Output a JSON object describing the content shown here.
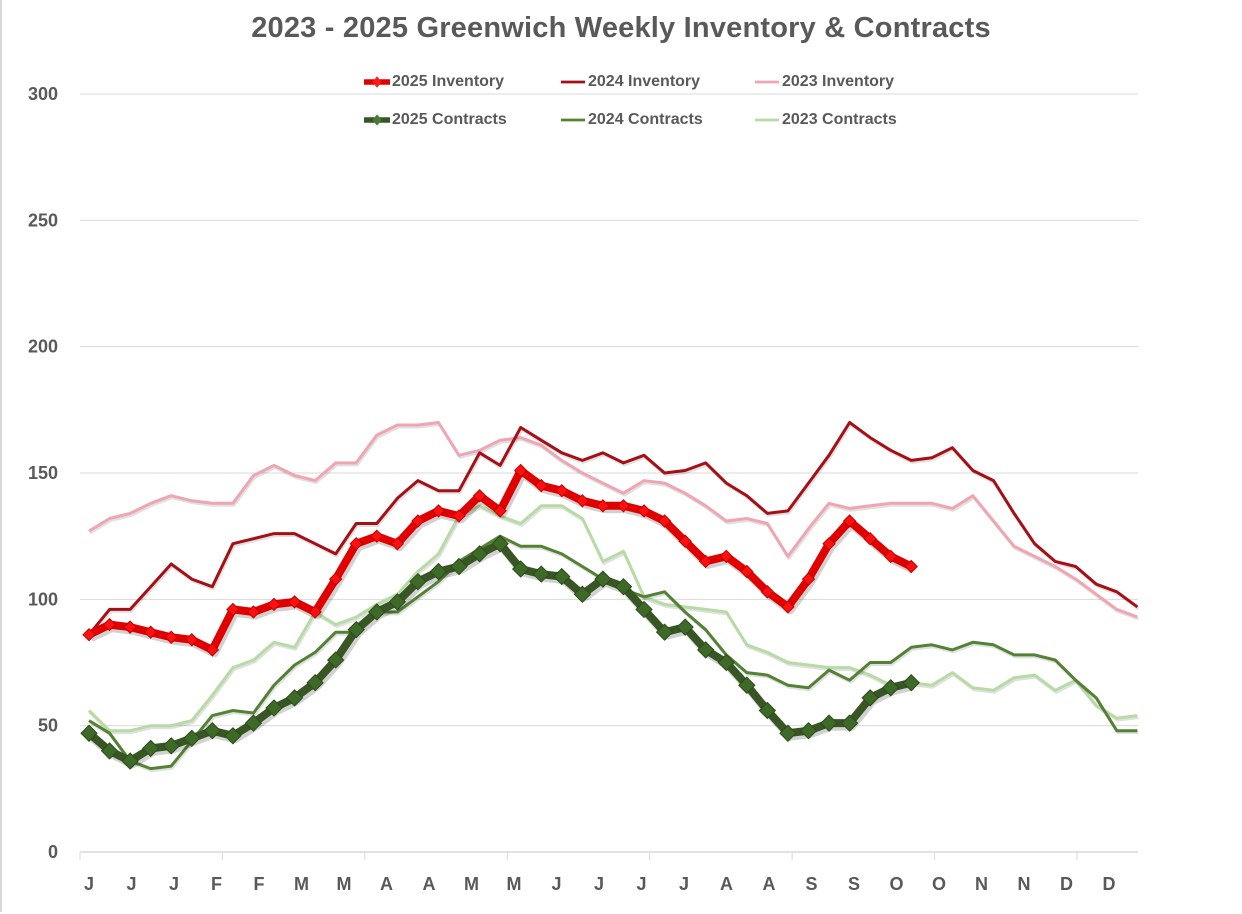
{
  "chart_data": {
    "type": "line",
    "title": "2023 - 2025 Greenwich Weekly Inventory & Contracts",
    "xlabel": "",
    "ylabel": "",
    "ylim": [
      0,
      300
    ],
    "yticks": [
      0,
      50,
      100,
      150,
      200,
      250,
      300
    ],
    "grid": true,
    "legend_position": "top",
    "x_tick_labels": [
      "J",
      "J",
      "J",
      "F",
      "F",
      "M",
      "M",
      "A",
      "A",
      "M",
      "M",
      "J",
      "J",
      "J",
      "J",
      "A",
      "A",
      "S",
      "S",
      "O",
      "O",
      "N",
      "N",
      "D",
      "D"
    ],
    "x_tick_labels_all": [
      "J",
      "J",
      "J",
      "F",
      "F",
      "M",
      "M",
      "A",
      "A",
      "M",
      "M",
      "J",
      "J",
      "J",
      "J",
      "A",
      "A",
      "S",
      "S",
      "O",
      "O",
      "N",
      "N",
      "D",
      "D"
    ],
    "weeks": 52,
    "series": [
      {
        "name": "2025 Inventory",
        "color": "#e00000",
        "style": "thick-marker",
        "values": [
          86,
          90,
          89,
          87,
          85,
          84,
          80,
          96,
          95,
          98,
          99,
          95,
          108,
          122,
          125,
          122,
          131,
          135,
          133,
          141,
          135,
          151,
          145,
          143,
          139,
          137,
          137,
          135,
          131,
          123,
          115,
          117,
          111,
          103,
          97,
          108,
          122,
          131,
          124,
          117,
          113
        ]
      },
      {
        "name": "2024 Inventory",
        "color": "#a50f15",
        "style": "line",
        "values": [
          86,
          96,
          96,
          105,
          114,
          108,
          105,
          122,
          124,
          126,
          126,
          122,
          118,
          130,
          130,
          140,
          147,
          143,
          143,
          158,
          153,
          168,
          163,
          158,
          155,
          158,
          154,
          157,
          150,
          151,
          154,
          146,
          141,
          134,
          135,
          146,
          157,
          170,
          164,
          159,
          155,
          156,
          160,
          151,
          147,
          134,
          122,
          115,
          113,
          106,
          103,
          97
        ]
      },
      {
        "name": "2023 Inventory",
        "color": "#f0a6b2",
        "style": "line",
        "values": [
          127,
          132,
          134,
          138,
          141,
          139,
          138,
          138,
          149,
          153,
          149,
          147,
          154,
          154,
          165,
          169,
          169,
          170,
          157,
          159,
          163,
          164,
          161,
          155,
          150,
          146,
          142,
          147,
          146,
          142,
          137,
          131,
          132,
          130,
          117,
          128,
          138,
          136,
          137,
          138,
          138,
          138,
          136,
          141,
          131,
          121,
          117,
          113,
          108,
          102,
          96,
          93
        ]
      },
      {
        "name": "2025 Contracts",
        "color": "#375623",
        "style": "thick-marker",
        "values": [
          47,
          40,
          36,
          41,
          42,
          45,
          48,
          46,
          51,
          57,
          61,
          67,
          76,
          88,
          95,
          99,
          107,
          111,
          113,
          118,
          122,
          112,
          110,
          109,
          102,
          108,
          105,
          96,
          87,
          89,
          80,
          75,
          66,
          56,
          47,
          48,
          51,
          51,
          61,
          65,
          67
        ]
      },
      {
        "name": "2024 Contracts",
        "color": "#548235",
        "style": "line",
        "values": [
          52,
          47,
          36,
          33,
          34,
          44,
          54,
          56,
          55,
          66,
          74,
          79,
          87,
          87,
          95,
          95,
          101,
          107,
          115,
          120,
          125,
          121,
          121,
          118,
          113,
          108,
          104,
          101,
          103,
          95,
          88,
          78,
          71,
          70,
          66,
          65,
          72,
          68,
          75,
          75,
          81,
          82,
          80,
          83,
          82,
          78,
          78,
          76,
          68,
          61,
          48,
          48
        ]
      },
      {
        "name": "2023 Contracts",
        "color": "#b7dba4",
        "style": "line",
        "values": [
          56,
          48,
          48,
          50,
          50,
          52,
          62,
          73,
          76,
          83,
          81,
          95,
          90,
          93,
          98,
          102,
          111,
          118,
          133,
          137,
          133,
          130,
          137,
          137,
          132,
          115,
          119,
          101,
          98,
          97,
          96,
          95,
          82,
          79,
          75,
          74,
          73,
          73,
          70,
          66,
          67,
          66,
          71,
          65,
          64,
          69,
          70,
          64,
          68,
          58,
          53,
          54
        ]
      }
    ]
  },
  "legend": {
    "items": [
      {
        "label": "2025 Inventory"
      },
      {
        "label": "2024 Inventory"
      },
      {
        "label": "2023 Inventory"
      },
      {
        "label": "2025 Contracts"
      },
      {
        "label": "2024 Contracts"
      },
      {
        "label": "2023 Contracts"
      }
    ]
  }
}
